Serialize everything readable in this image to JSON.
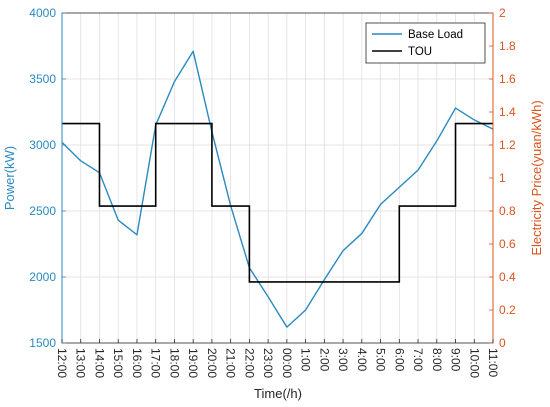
{
  "chart_data": {
    "type": "line",
    "xlabel": "Time(/h)",
    "ylabel_left": "Power(kW)",
    "ylabel_right": "Electricity Price(yuan/kWh)",
    "x_ticks": [
      "12:00",
      "13:00",
      "14:00",
      "15:00",
      "16:00",
      "17:00",
      "18:00",
      "19:00",
      "20:00",
      "21:00",
      "22:00",
      "23:00",
      "00:00",
      "1:00",
      "2:00",
      "3:00",
      "4:00",
      "5:00",
      "6:00",
      "7:00",
      "8:00",
      "9:00",
      "10:00",
      "11:00"
    ],
    "ylim_left": [
      1500,
      4000
    ],
    "ylim_right": [
      0,
      2
    ],
    "y_ticks_left": [
      "1500",
      "2000",
      "2500",
      "3000",
      "3500",
      "4000"
    ],
    "y_ticks_right": [
      "0",
      "0.2",
      "0.4",
      "0.6",
      "0.8",
      "1",
      "1.2",
      "1.4",
      "1.6",
      "1.8",
      "2"
    ],
    "grid": true,
    "legend_position": "top-right",
    "colors": {
      "left_axis": "#2a8abf",
      "right_axis": "#d9541e",
      "base_load": "#2a8abf",
      "tou": "#000000"
    },
    "series": [
      {
        "name": "Base Load",
        "axis": "left",
        "style": "line",
        "values": [
          3020,
          2880,
          2790,
          2430,
          2320,
          3150,
          3480,
          3710,
          3100,
          2540,
          2070,
          1850,
          1620,
          1750,
          1980,
          2200,
          2330,
          2550,
          2680,
          2810,
          3030,
          3280,
          3190,
          3120
        ]
      },
      {
        "name": "TOU",
        "axis": "right",
        "style": "step",
        "steps": [
          {
            "from": "12:00",
            "to": "14:00",
            "value": 1.33
          },
          {
            "from": "14:00",
            "to": "17:00",
            "value": 0.83
          },
          {
            "from": "17:00",
            "to": "20:00",
            "value": 1.33
          },
          {
            "from": "20:00",
            "to": "22:00",
            "value": 0.83
          },
          {
            "from": "22:00",
            "to": "6:00",
            "value": 0.37
          },
          {
            "from": "6:00",
            "to": "9:00",
            "value": 0.83
          },
          {
            "from": "9:00",
            "to": "11:00",
            "value": 1.33
          }
        ]
      }
    ]
  }
}
